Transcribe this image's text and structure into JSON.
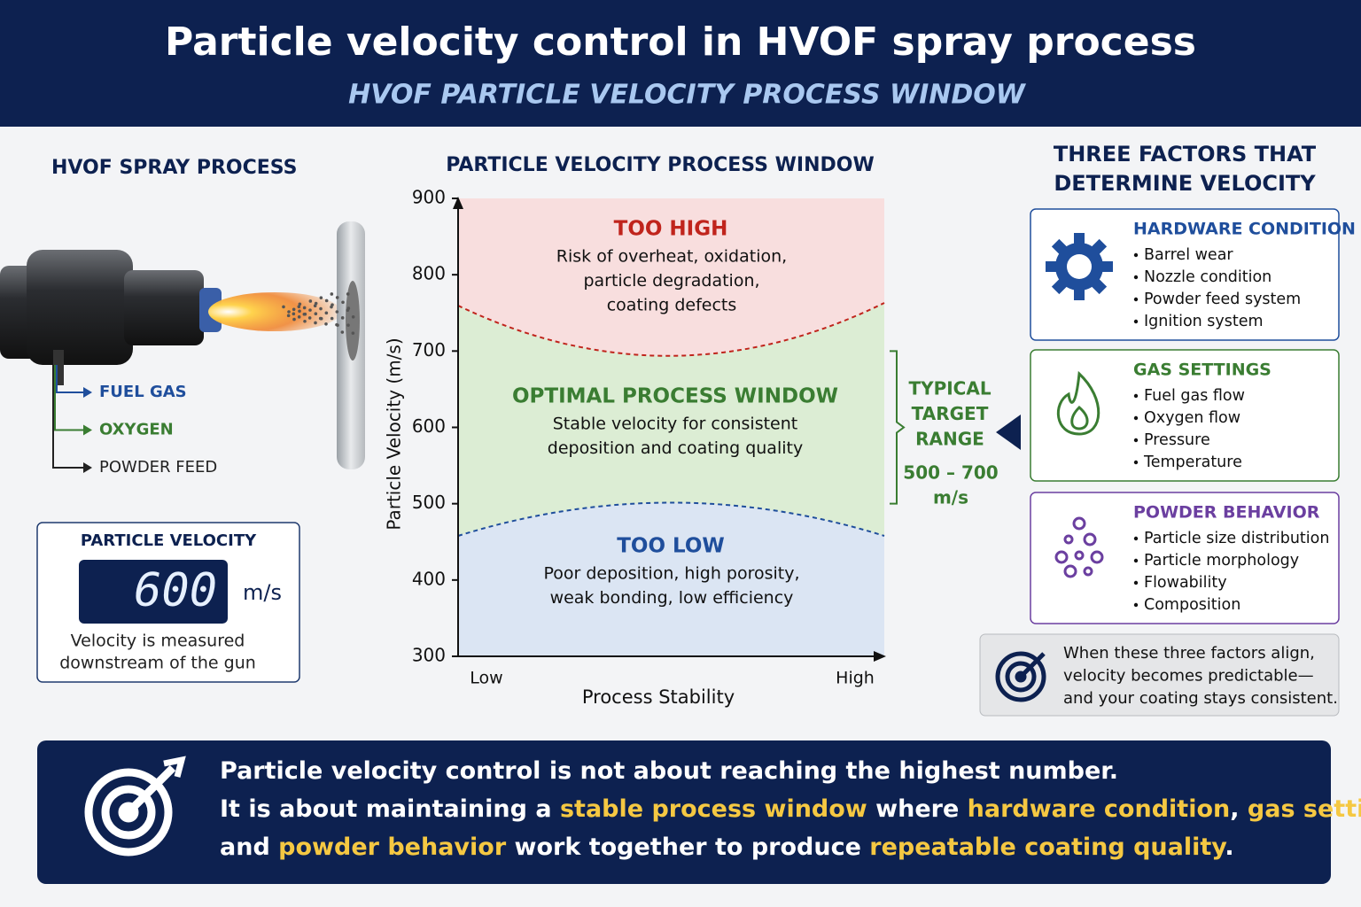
{
  "header": {
    "title": "Particle velocity control in HVOF spray process",
    "subtitle": "HVOF PARTICLE VELOCITY PROCESS WINDOW"
  },
  "process": {
    "title": "HVOF SPRAY PROCESS",
    "inputs": [
      {
        "label": "FUEL GAS",
        "color": "#1f4e9c"
      },
      {
        "label": "OXYGEN",
        "color": "#3a7d32"
      },
      {
        "label": "POWDER FEED",
        "color": "#222222"
      }
    ]
  },
  "velocity_display": {
    "title": "PARTICLE VELOCITY",
    "value": 600,
    "unit": "m/s",
    "note_lines": [
      "Velocity is measured",
      "downstream of the gun"
    ]
  },
  "window_chart": {
    "title": "PARTICLE VELOCITY PROCESS WINDOW",
    "ylim": [
      300,
      900
    ],
    "yticks": [
      300,
      400,
      500,
      600,
      700,
      800,
      900
    ],
    "y_label": "Particle Velocity (m/s)",
    "x_label": "Process Stability",
    "x_low": "Low",
    "x_high": "High",
    "zones": [
      {
        "name": "TOO HIGH",
        "color": "#c0241c",
        "lines": [
          "Risk of overheat, oxidation,",
          "particle degradation,",
          "coating defects"
        ]
      },
      {
        "name": "OPTIMAL PROCESS WINDOW",
        "color": "#3a7d32",
        "lines": [
          "Stable velocity for consistent",
          "deposition and coating quality"
        ]
      },
      {
        "name": "TOO LOW",
        "color": "#1f4e9c",
        "lines": [
          "Poor deposition, high porosity,",
          "weak bonding, low efficiency"
        ]
      }
    ],
    "target": {
      "lines": [
        "TYPICAL",
        "TARGET",
        "RANGE"
      ],
      "range_lines": [
        "500 – 700",
        "m/s"
      ],
      "range": [
        500,
        700
      ]
    }
  },
  "factors": {
    "title_lines": [
      "THREE FACTORS THAT",
      "DETERMINE VELOCITY"
    ],
    "cards": [
      {
        "title": "HARDWARE CONDITION",
        "color": "#1f4e9c",
        "items": [
          "Barrel wear",
          "Nozzle condition",
          "Powder feed system",
          "Ignition system"
        ]
      },
      {
        "title": "GAS SETTINGS",
        "color": "#3a7d32",
        "items": [
          "Fuel gas flow",
          "Oxygen flow",
          "Pressure",
          "Temperature"
        ]
      },
      {
        "title": "POWDER BEHAVIOR",
        "color": "#6b3fa0",
        "items": [
          "Particle size distribution",
          "Particle morphology",
          "Flowability",
          "Composition"
        ]
      }
    ],
    "align_lines": [
      "When these three factors align,",
      "velocity becomes predictable—",
      "and your coating stays consistent."
    ]
  },
  "footer": {
    "highlight_color": "#f5c842",
    "lines": [
      [
        {
          "text": "Particle velocity control is not about reaching the highest number.",
          "highlight": false
        }
      ],
      [
        {
          "text": "It is about maintaining a ",
          "highlight": false
        },
        {
          "text": "stable process window",
          "highlight": true
        },
        {
          "text": " where ",
          "highlight": false
        },
        {
          "text": "hardware condition",
          "highlight": true
        },
        {
          "text": ", ",
          "highlight": false
        },
        {
          "text": "gas settings",
          "highlight": true
        },
        {
          "text": ",",
          "highlight": false
        }
      ],
      [
        {
          "text": "and ",
          "highlight": false
        },
        {
          "text": "powder behavior",
          "highlight": true
        },
        {
          "text": " work together to produce ",
          "highlight": false
        },
        {
          "text": "repeatable coating quality",
          "highlight": true
        },
        {
          "text": ".",
          "highlight": false
        }
      ]
    ]
  }
}
